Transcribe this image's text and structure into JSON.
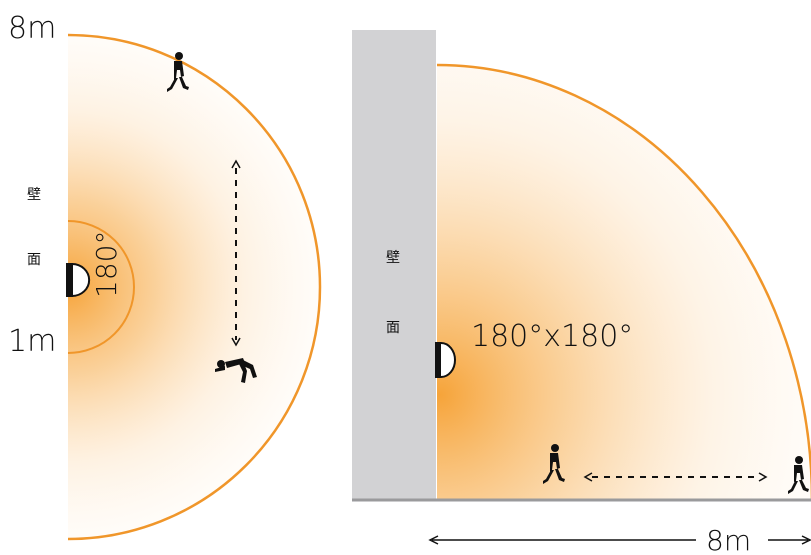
{
  "left_diagram": {
    "range_label": "8m",
    "height_label": "1m",
    "angle_label": "180°",
    "wall_label_line1": "壁",
    "wall_label_line2": "面"
  },
  "right_diagram": {
    "angle_label": "180°x180°",
    "wall_label_line1": "壁",
    "wall_label_line2": "面",
    "distance_label": "8m"
  },
  "colors": {
    "arc": "#f0962a",
    "fill_core": "#f6a43a",
    "wall": "#d2d2d4",
    "floor": "#9a9a9c",
    "ink": "#111111"
  },
  "icons": [
    "walking-person-icon",
    "crouching-person-icon",
    "sensor-icon",
    "dashed-arrow-icon"
  ]
}
